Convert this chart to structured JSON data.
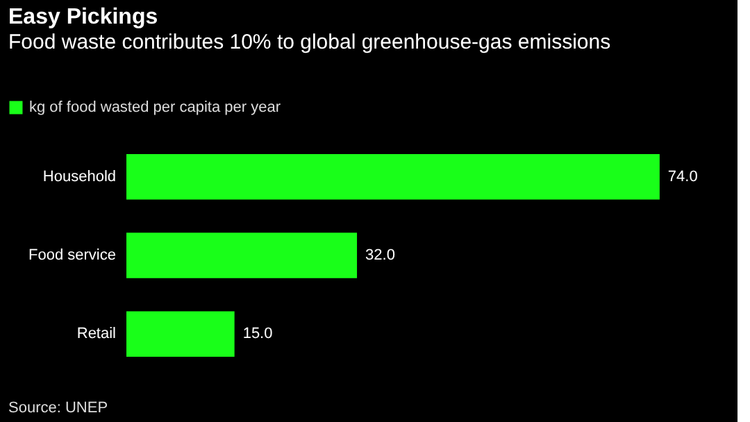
{
  "chart_data": {
    "type": "bar",
    "orientation": "horizontal",
    "title": "Easy Pickings",
    "subtitle": "Food waste contributes 10% to global greenhouse-gas emissions",
    "categories": [
      "Household",
      "Food service",
      "Retail"
    ],
    "series": [
      {
        "name": "kg of food wasted per capita per year",
        "color": "#19ff19",
        "values": [
          74.0,
          32.0,
          15.0
        ],
        "value_labels": [
          "74.0",
          "32.0",
          "15.0"
        ]
      }
    ],
    "legend": "top left",
    "grid": false,
    "annotations": [
      "Source: UNEP"
    ]
  }
}
